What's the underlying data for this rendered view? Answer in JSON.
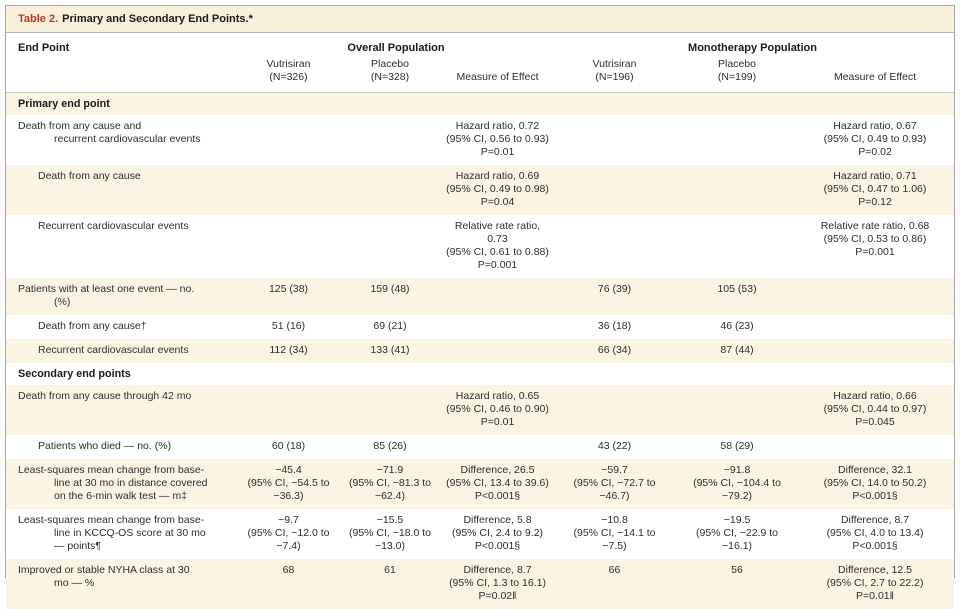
{
  "title": {
    "label": "Table 2.",
    "text": "Primary and Secondary End Points.*"
  },
  "header": {
    "endpoint": "End Point",
    "groups": [
      {
        "label": "Overall Population",
        "subcols": [
          "Vutrisiran\n(N=326)",
          "Placebo\n(N=328)",
          "Measure of Effect"
        ]
      },
      {
        "label": "Monotherapy Population",
        "subcols": [
          "Vutrisiran\n(N=196)",
          "Placebo\n(N=199)",
          "Measure of Effect"
        ]
      }
    ]
  },
  "rows": [
    {
      "type": "section",
      "shaded": true,
      "label": "Primary end point"
    },
    {
      "type": "data",
      "shaded": false,
      "indent": false,
      "label": "Death from any cause and\nrecurrent cardiovascular events",
      "cells": [
        "",
        "",
        "Hazard ratio, 0.72\n(95% CI, 0.56 to 0.93)\nP=0.01",
        "",
        "",
        "Hazard ratio, 0.67\n(95% CI, 0.49 to 0.93)\nP=0.02"
      ]
    },
    {
      "type": "data",
      "shaded": true,
      "indent": true,
      "label": "Death from any cause",
      "cells": [
        "",
        "",
        "Hazard ratio, 0.69\n(95% CI, 0.49 to 0.98)\nP=0.04",
        "",
        "",
        "Hazard ratio, 0.71\n(95% CI, 0.47 to 1.06)\nP=0.12"
      ]
    },
    {
      "type": "data",
      "shaded": false,
      "indent": true,
      "label": "Recurrent cardiovascular events",
      "cells": [
        "",
        "",
        "Relative rate ratio, 0.73\n(95% CI, 0.61 to 0.88)\nP=0.001",
        "",
        "",
        "Relative rate ratio, 0.68\n(95% CI, 0.53 to 0.86)\nP=0.001"
      ]
    },
    {
      "type": "data",
      "shaded": true,
      "indent": false,
      "label": "Patients with at least one event — no.\n(%)",
      "cells": [
        "125 (38)",
        "159 (48)",
        "",
        "76 (39)",
        "105 (53)",
        ""
      ]
    },
    {
      "type": "data",
      "shaded": false,
      "indent": true,
      "label": "Death from any cause†",
      "cells": [
        "51 (16)",
        "69 (21)",
        "",
        "36 (18)",
        "46 (23)",
        ""
      ]
    },
    {
      "type": "data",
      "shaded": true,
      "indent": true,
      "label": "Recurrent cardiovascular events",
      "cells": [
        "112 (34)",
        "133 (41)",
        "",
        "66 (34)",
        "87 (44)",
        ""
      ]
    },
    {
      "type": "section",
      "shaded": false,
      "label": "Secondary end points"
    },
    {
      "type": "data",
      "shaded": true,
      "indent": false,
      "label": "Death from any cause through 42 mo",
      "cells": [
        "",
        "",
        "Hazard ratio, 0.65\n(95% CI, 0.46 to 0.90)\nP=0.01",
        "",
        "",
        "Hazard ratio, 0.66\n(95% CI, 0.44 to 0.97)\nP=0.045"
      ]
    },
    {
      "type": "data",
      "shaded": false,
      "indent": true,
      "label": "Patients who died — no. (%)",
      "cells": [
        "60 (18)",
        "85 (26)",
        "",
        "43 (22)",
        "58 (29)",
        ""
      ]
    },
    {
      "type": "data",
      "shaded": true,
      "indent": false,
      "label": "Least-squares mean change from base-\nline at 30 mo in distance covered\non the 6-min walk test — m‡",
      "cells": [
        "−45.4\n(95% CI, −54.5 to\n−36.3)",
        "−71.9\n(95% CI, −81.3 to\n−62.4)",
        "Difference, 26.5\n(95% CI, 13.4 to 39.6)\nP<0.001§",
        "−59.7\n(95% CI, −72.7 to\n−46.7)",
        "−91.8\n(95% CI, −104.4 to\n−79.2)",
        "Difference, 32.1\n(95% CI, 14.0 to 50.2)\nP<0.001§"
      ]
    },
    {
      "type": "data",
      "shaded": false,
      "indent": false,
      "label": "Least-squares mean change from base-\nline in KCCQ-OS score at 30 mo\n— points¶",
      "cells": [
        "−9.7\n(95% CI, −12.0 to\n−7.4)",
        "−15.5\n(95% CI, −18.0 to\n−13.0)",
        "Difference, 5.8\n(95% CI, 2.4 to 9.2)\nP<0.001§",
        "−10.8\n(95% CI, −14.1 to\n−7.5)",
        "−19.5\n(95% CI, −22.9 to\n−16.1)",
        "Difference, 8.7\n(95% CI, 4.0 to 13.4)\nP<0.001§"
      ]
    },
    {
      "type": "data",
      "shaded": true,
      "indent": false,
      "label": "Improved or stable NYHA class at 30\nmo — %",
      "cells": [
        "68",
        "61",
        "Difference, 8.7\n(95% CI, 1.3 to 16.1)\nP=0.02‖",
        "66",
        "56",
        "Difference, 12.5\n(95% CI, 2.7 to 22.2)\nP=0.01‖"
      ]
    }
  ]
}
